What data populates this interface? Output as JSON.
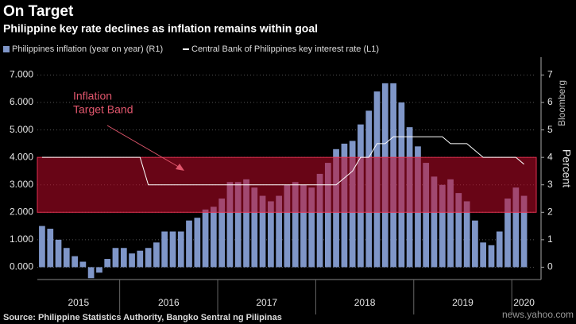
{
  "chart_data": {
    "type": "bar_line",
    "title": "On Target",
    "subtitle": "Philippine key rate declines as inflation remains within goal",
    "source": "Source: Philippine Statistics Authority, Bangko Sentral ng Pilipinas",
    "watermark": "Bloomberg",
    "site": "news.yahoo.com",
    "y2_label": "Percent",
    "annotation": [
      "Inflation",
      "Target Band"
    ],
    "band": [
      2,
      4
    ],
    "band_color": "rgba(190,10,40,0.55)",
    "x": [
      2015.208,
      2015.292,
      2015.375,
      2015.458,
      2015.542,
      2015.625,
      2015.708,
      2015.792,
      2015.875,
      2015.958,
      2016.042,
      2016.125,
      2016.208,
      2016.292,
      2016.375,
      2016.458,
      2016.542,
      2016.625,
      2016.708,
      2016.792,
      2016.875,
      2016.958,
      2017.042,
      2017.125,
      2017.208,
      2017.292,
      2017.375,
      2017.458,
      2017.542,
      2017.625,
      2017.708,
      2017.792,
      2017.875,
      2017.958,
      2018.042,
      2018.125,
      2018.208,
      2018.292,
      2018.375,
      2018.458,
      2018.542,
      2018.625,
      2018.708,
      2018.792,
      2018.875,
      2018.958,
      2019.042,
      2019.125,
      2019.208,
      2019.292,
      2019.375,
      2019.458,
      2019.542,
      2019.625,
      2019.708,
      2019.792,
      2019.875,
      2019.958,
      2020.042,
      2020.125
    ],
    "series": [
      {
        "name": "Philippines inflation (year on year) (R1)",
        "color": "#7f96c8",
        "axis": "y2",
        "values": [
          1.5,
          1.4,
          1.0,
          0.7,
          0.4,
          0.2,
          -0.4,
          -0.2,
          0.3,
          0.7,
          0.7,
          0.5,
          0.6,
          0.7,
          0.9,
          1.3,
          1.3,
          1.3,
          1.7,
          1.8,
          2.1,
          2.2,
          2.5,
          3.1,
          3.1,
          3.2,
          2.9,
          2.6,
          2.4,
          2.6,
          3.0,
          3.1,
          3.0,
          2.9,
          3.4,
          3.8,
          4.3,
          4.5,
          4.6,
          5.2,
          5.7,
          6.4,
          6.7,
          6.7,
          6.0,
          5.1,
          4.4,
          3.8,
          3.3,
          3.0,
          3.2,
          2.7,
          2.4,
          1.7,
          0.9,
          0.8,
          1.3,
          2.5,
          2.9,
          2.6
        ]
      },
      {
        "name": "Central Bank of Philippines key interest rate (L1)",
        "color": "#ffffff",
        "axis": "y",
        "values": [
          4,
          4,
          4,
          4,
          4,
          4,
          4,
          4,
          4,
          4,
          4,
          4,
          4,
          3,
          3,
          3,
          3,
          3,
          3,
          3,
          3,
          3,
          3,
          3,
          3,
          3,
          3,
          3,
          3,
          3,
          3,
          3,
          3,
          3,
          3,
          3,
          3,
          3.25,
          3.5,
          4,
          4,
          4.5,
          4.5,
          4.75,
          4.75,
          4.75,
          4.75,
          4.75,
          4.75,
          4.75,
          4.5,
          4.5,
          4.5,
          4.25,
          4,
          4,
          4,
          4,
          4,
          3.75
        ]
      }
    ],
    "xlim": [
      2015.16,
      2020.25
    ],
    "xticks": [
      {
        "value": 2015.58,
        "label": "2015"
      },
      {
        "value": 2016.5,
        "label": "2016"
      },
      {
        "value": 2017.5,
        "label": "2017"
      },
      {
        "value": 2018.5,
        "label": "2018"
      },
      {
        "value": 2019.5,
        "label": "2019"
      },
      {
        "value": 2020.125,
        "label": "2020"
      }
    ],
    "xminor": [
      2016,
      2017,
      2018,
      2019,
      2020
    ],
    "ylim": [
      -0.45,
      7.65
    ],
    "yticks": [
      {
        "value": 0,
        "label": "0.000"
      },
      {
        "value": 1,
        "label": "1.000"
      },
      {
        "value": 2,
        "label": "2.000"
      },
      {
        "value": 3,
        "label": "3.000"
      },
      {
        "value": 4,
        "label": "4.000"
      },
      {
        "value": 5,
        "label": "5.000"
      },
      {
        "value": 6,
        "label": "6.000"
      },
      {
        "value": 7,
        "label": "7.000"
      }
    ],
    "y2lim": [
      -0.45,
      7.65
    ],
    "y2ticks": [
      0,
      1,
      2,
      3,
      4,
      5,
      6,
      7
    ],
    "grid": true
  }
}
